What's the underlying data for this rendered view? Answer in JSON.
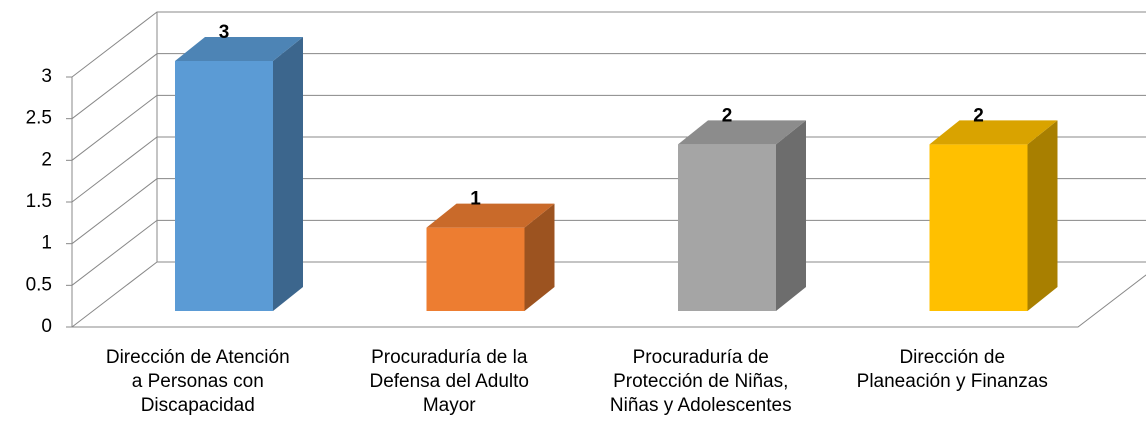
{
  "chart_data": {
    "type": "bar3d",
    "categories": [
      "Dirección de Atención\na Personas con\nDiscapacidad",
      "Procuraduría de la\nDefensa del Adulto\nMayor",
      "Procuraduría de\nProtección de Niñas,\nNiñas y Adolescentes",
      "Dirección de\nPlaneación y Finanzas"
    ],
    "values": [
      3,
      1,
      2,
      2
    ],
    "colors": [
      "#5b9bd5",
      "#ed7d31",
      "#a5a5a5",
      "#ffc000"
    ],
    "ylim": [
      0,
      3
    ],
    "yticks": [
      0,
      0.5,
      1,
      1.5,
      2,
      2.5,
      3
    ],
    "grid": true
  }
}
